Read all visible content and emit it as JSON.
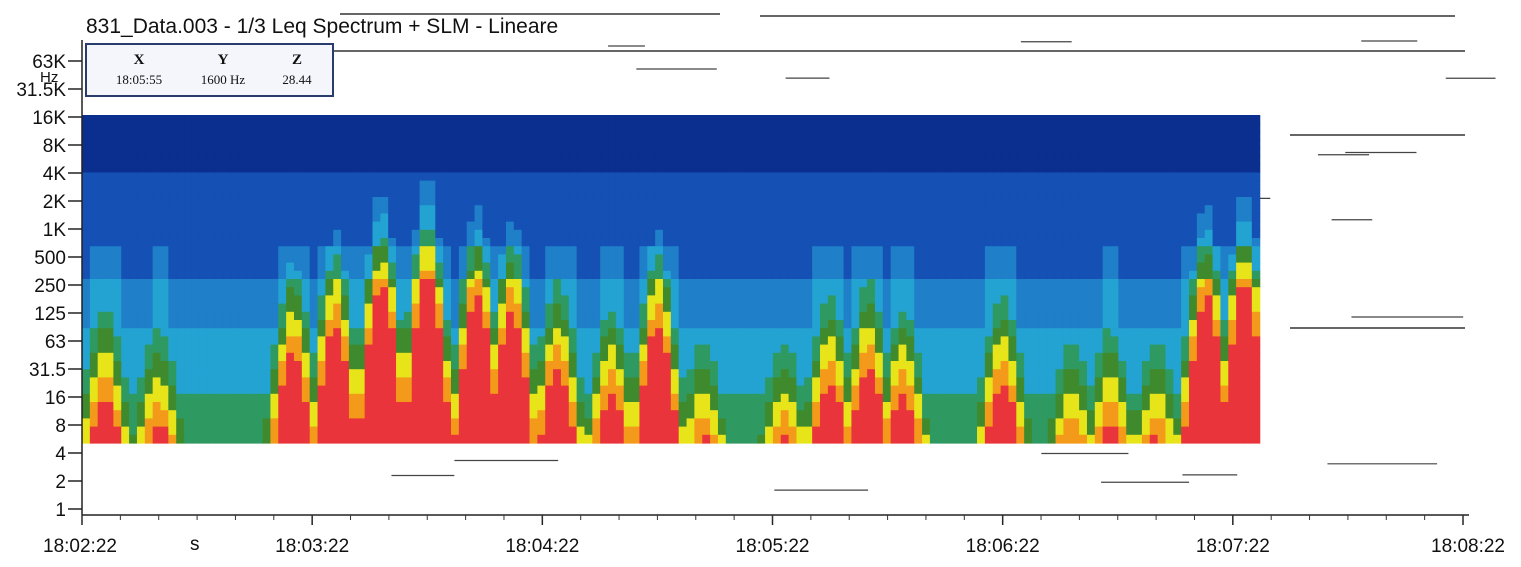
{
  "chart_data": {
    "type": "heatmap",
    "title": "831_Data.003 - 1/3 Leq Spectrum + SLM - Lineare",
    "y_unit": "Hz",
    "x_unit": "s",
    "x_ticks": [
      "18:02:22",
      "18:03:22",
      "18:04:22",
      "18:05:22",
      "18:06:22",
      "18:07:22",
      "18:08:22"
    ],
    "y_ticks": [
      "63K",
      "31.5K",
      "16K",
      "8K",
      "4K",
      "2K",
      "1K",
      "500",
      "250",
      "125",
      "63",
      "31.5",
      "16",
      "8",
      "4",
      "2",
      "1"
    ],
    "x_range": [
      "18:02:22",
      "18:08:22"
    ],
    "y_range": [
      "1",
      "63K"
    ],
    "data_extent": {
      "x_end": "18:07:29",
      "y_min": "4",
      "y_max": "16K"
    },
    "colorscale": [
      "#0a2f8f",
      "#1550b4",
      "#1f7fc8",
      "#23a3d2",
      "#2e9a62",
      "#3f8a2c",
      "#e8e41a",
      "#f49a1a",
      "#e8343a"
    ],
    "cursor": {
      "headers": [
        "X",
        "Y",
        "Z"
      ],
      "values": [
        "18:05:55",
        "1600 Hz",
        "28.44"
      ]
    },
    "event_peaks": [
      {
        "t": 6,
        "intensity": 0.55
      },
      {
        "t": 20,
        "intensity": 0.45
      },
      {
        "t": 55,
        "intensity": 0.7
      },
      {
        "t": 66,
        "intensity": 0.8
      },
      {
        "t": 78,
        "intensity": 0.95
      },
      {
        "t": 90,
        "intensity": 1.0
      },
      {
        "t": 103,
        "intensity": 0.9
      },
      {
        "t": 112,
        "intensity": 0.85
      },
      {
        "t": 124,
        "intensity": 0.65
      },
      {
        "t": 138,
        "intensity": 0.55
      },
      {
        "t": 150,
        "intensity": 0.8
      },
      {
        "t": 162,
        "intensity": 0.4
      },
      {
        "t": 183,
        "intensity": 0.4
      },
      {
        "t": 195,
        "intensity": 0.6
      },
      {
        "t": 205,
        "intensity": 0.65
      },
      {
        "t": 214,
        "intensity": 0.55
      },
      {
        "t": 240,
        "intensity": 0.6
      },
      {
        "t": 258,
        "intensity": 0.4
      },
      {
        "t": 268,
        "intensity": 0.45
      },
      {
        "t": 280,
        "intensity": 0.4
      },
      {
        "t": 293,
        "intensity": 0.9
      },
      {
        "t": 303,
        "intensity": 0.95
      }
    ],
    "grid": false
  }
}
